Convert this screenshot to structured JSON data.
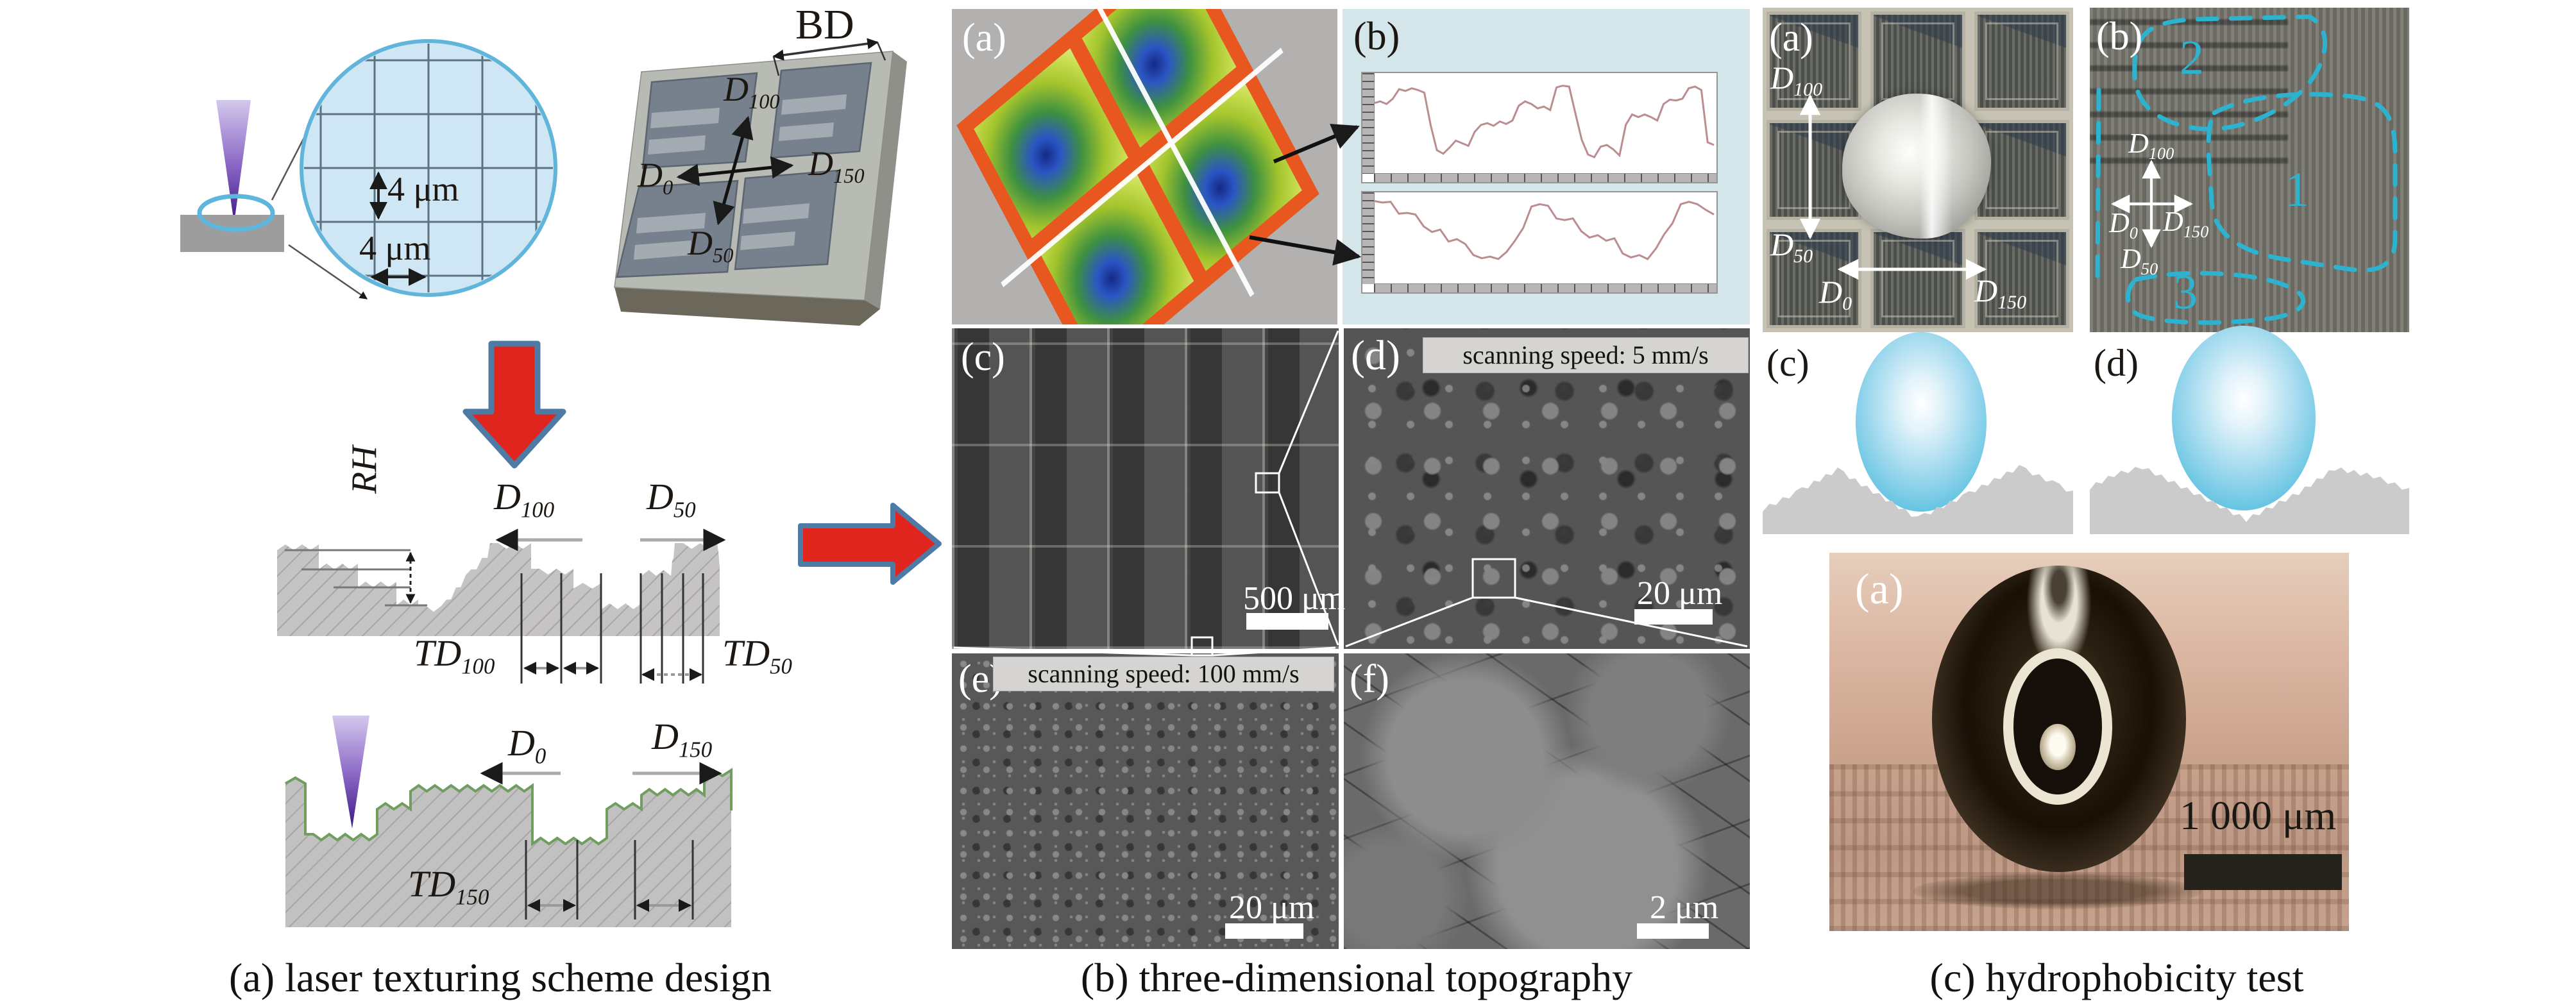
{
  "figure": {
    "captions": {
      "left": "(a) laser texturing scheme design",
      "middle": "(b) three-dimensional topography",
      "right": "(c) hydrophobicity test"
    },
    "dims": {
      "d100": {
        "base": "D",
        "sub": "100"
      },
      "d50": {
        "base": "D",
        "sub": "50"
      },
      "d0": {
        "base": "D",
        "sub": "0"
      },
      "d150": {
        "base": "D",
        "sub": "150"
      },
      "td100": {
        "base": "TD",
        "sub": "100"
      },
      "td50": {
        "base": "TD",
        "sub": "50"
      },
      "td150": {
        "base": "TD",
        "sub": "150"
      },
      "rh": "RH",
      "bd": "BD"
    },
    "left": {
      "spot_v_label": "4 μm",
      "spot_h_label": "4 μm"
    },
    "middle": {
      "panel_labels": {
        "a": "(a)",
        "b": "(b)",
        "c": "(c)",
        "d": "(d)",
        "e": "(e)",
        "f": "(f)"
      },
      "banner_d": "scanning speed: 5 mm/s",
      "banner_e": "scanning speed: 100 mm/s",
      "scalebar_c": "500 μm",
      "scalebar_d": "20 μm",
      "scalebar_e": "20 μm",
      "scalebar_f": "2 μm"
    },
    "right": {
      "panel_labels": {
        "a": "(a)",
        "b": "(b)",
        "c": "(c)",
        "d": "(d)",
        "photo": "(a)"
      },
      "regions": {
        "r1": "1",
        "r2": "2",
        "r3": "3"
      },
      "photo_scalebar": "1 000 μm"
    },
    "colors": {
      "arrow_red": "#e0251f",
      "arrow_border_blue": "#4d7ba6",
      "spot_fill": "#cfe7f5",
      "spot_border": "#62b5da",
      "profile_bg": "#d5e6ea",
      "trace_pink": "#bb8d90",
      "cyan_annotation": "#2db3cf",
      "droplet_blue": "#5fc2e4"
    }
  },
  "chart_data": [
    {
      "type": "line",
      "title": "",
      "xlabel": "",
      "ylabel": "",
      "legend": null,
      "grid": false,
      "ylim": [
        0,
        1
      ],
      "series_name": "surface height profile 1 (normalized)",
      "values": [
        0.7,
        0.72,
        0.69,
        0.75,
        0.86,
        0.84,
        0.87,
        0.85,
        0.82,
        0.45,
        0.16,
        0.12,
        0.19,
        0.27,
        0.24,
        0.21,
        0.37,
        0.45,
        0.47,
        0.44,
        0.49,
        0.46,
        0.5,
        0.67,
        0.72,
        0.69,
        0.64,
        0.66,
        0.62,
        0.88,
        0.9,
        0.89,
        0.58,
        0.28,
        0.11,
        0.08,
        0.2,
        0.22,
        0.17,
        0.1,
        0.45,
        0.57,
        0.54,
        0.57,
        0.54,
        0.5,
        0.69,
        0.74,
        0.73,
        0.75,
        0.87,
        0.89,
        0.85,
        0.25,
        0.22
      ]
    },
    {
      "type": "line",
      "title": "",
      "xlabel": "",
      "ylabel": "",
      "legend": null,
      "grid": false,
      "ylim": [
        0,
        1
      ],
      "series_name": "surface height profile 2 (normalized)",
      "values": [
        0.94,
        0.92,
        0.93,
        0.78,
        0.79,
        0.77,
        0.62,
        0.55,
        0.58,
        0.43,
        0.46,
        0.4,
        0.26,
        0.22,
        0.24,
        0.21,
        0.3,
        0.44,
        0.6,
        0.87,
        0.9,
        0.88,
        0.72,
        0.7,
        0.72,
        0.56,
        0.48,
        0.51,
        0.44,
        0.47,
        0.28,
        0.23,
        0.26,
        0.21,
        0.34,
        0.52,
        0.66,
        0.9,
        0.93,
        0.9,
        0.83,
        0.77
      ]
    }
  ]
}
